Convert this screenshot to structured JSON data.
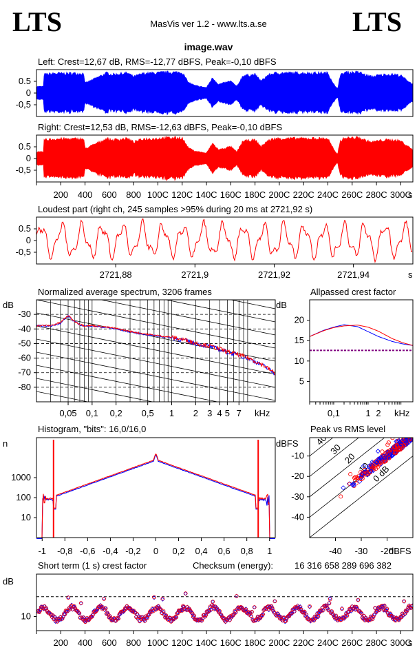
{
  "header": {
    "logo_left": "LTS",
    "logo_right": "LTS",
    "app_title": "MasVis ver 1.2 - www.lts.a.se",
    "file_name": "image.wav"
  },
  "colors": {
    "left": "#0000ff",
    "right": "#ff0000",
    "grid": "#000000"
  },
  "chart_data": [
    {
      "id": "left-waveform",
      "type": "area",
      "title": "Left: Crest=12,67 dB, RMS=-12,77 dBFS, Peak=-0,10 dBFS",
      "ylim": [
        -1,
        1
      ],
      "yticks": [
        "0.5",
        "0",
        "-0,5"
      ],
      "yticks_values": [
        0.5,
        0,
        -0.5
      ],
      "xlim": [
        0,
        3100
      ],
      "envelope": {
        "x": [
          0,
          60,
          62,
          150,
          390,
          400,
          580,
          620,
          750,
          800,
          880,
          1000,
          1050,
          1130,
          1200,
          1250,
          1300,
          1400,
          1450,
          1500,
          1600,
          1650,
          1700,
          1800,
          1850,
          1900,
          1950,
          2000,
          2100,
          2200,
          2300,
          2400,
          2460,
          2480,
          2500,
          2540,
          2600,
          2660,
          2700,
          2760,
          2800,
          2880,
          2950,
          3000,
          3050,
          3100
        ],
        "y": [
          0.3,
          0.3,
          0.85,
          0.9,
          0.9,
          0.45,
          0.92,
          0.85,
          0.92,
          0.75,
          0.9,
          0.92,
          0.95,
          0.95,
          0.95,
          0.5,
          0.35,
          0.25,
          0.7,
          0.4,
          0.55,
          0.3,
          0.8,
          0.85,
          0.55,
          0.8,
          0.9,
          0.92,
          0.92,
          0.92,
          0.92,
          0.92,
          0.3,
          0.2,
          0.8,
          0.95,
          0.95,
          0.95,
          0.85,
          0.75,
          0.8,
          0.85,
          0.85,
          0.8,
          0.6,
          0.4
        ]
      }
    },
    {
      "id": "right-waveform",
      "type": "area",
      "title": "Right: Crest=12,53 dB, RMS=-12,63 dBFS, Peak=-0,10 dBFS",
      "ylim": [
        -1,
        1
      ],
      "yticks": [
        "0.5",
        "0",
        "-0,5"
      ],
      "yticks_values": [
        0.5,
        0,
        -0.5
      ],
      "xlim": [
        0,
        3100
      ],
      "xticks": [
        "200",
        "400",
        "600",
        "800",
        "100C",
        "120C",
        "140C",
        "160C",
        "180C",
        "200C",
        "220C",
        "240C",
        "260C",
        "280C",
        "300C"
      ],
      "xticks_values": [
        200,
        400,
        600,
        800,
        1000,
        1200,
        1400,
        1600,
        1800,
        2000,
        2200,
        2400,
        2600,
        2800,
        3000
      ],
      "xunit": "s",
      "envelope": {
        "x": [
          0,
          60,
          62,
          150,
          390,
          400,
          580,
          620,
          750,
          800,
          880,
          1000,
          1050,
          1130,
          1200,
          1250,
          1300,
          1400,
          1450,
          1500,
          1600,
          1650,
          1700,
          1800,
          1850,
          1900,
          1950,
          2000,
          2100,
          2200,
          2300,
          2400,
          2460,
          2480,
          2500,
          2540,
          2600,
          2660,
          2700,
          2760,
          2800,
          2880,
          2950,
          3000,
          3050,
          3100
        ],
        "y": [
          0.3,
          0.3,
          0.85,
          0.9,
          0.9,
          0.45,
          0.92,
          0.85,
          0.92,
          0.75,
          0.9,
          0.92,
          0.95,
          0.95,
          0.95,
          0.5,
          0.35,
          0.25,
          0.7,
          0.4,
          0.55,
          0.3,
          0.8,
          0.85,
          0.55,
          0.8,
          0.9,
          0.92,
          0.92,
          0.92,
          0.92,
          0.92,
          0.3,
          0.2,
          0.8,
          0.95,
          0.95,
          0.95,
          0.85,
          0.75,
          0.8,
          0.85,
          0.85,
          0.8,
          0.6,
          0.4
        ]
      }
    },
    {
      "id": "loudest-part",
      "type": "line",
      "title": "Loudest part (right ch, 245 samples >95% during 20 ms at 2721,92 s)",
      "ylim": [
        -1,
        1
      ],
      "yticks": [
        "0.5",
        "0",
        "-0,5"
      ],
      "yticks_values": [
        0.5,
        0,
        -0.5
      ],
      "xlim": [
        2721.86,
        2721.955
      ],
      "xticks": [
        "2721,88",
        "2721,9",
        "2721,92",
        "2721,94"
      ],
      "xticks_values": [
        2721.88,
        2721.9,
        2721.92,
        2721.94
      ],
      "xunit": "s",
      "period_s": 0.0051
    },
    {
      "id": "avg-spectrum",
      "type": "line",
      "title": "Normalized average spectrum, 3206 frames",
      "yunit": "dB",
      "ylim": [
        -90,
        -20
      ],
      "yticks": [
        "-30",
        "-40",
        "-50",
        "-60",
        "-70",
        "-80"
      ],
      "yticks_values": [
        -30,
        -40,
        -50,
        -60,
        -70,
        -80
      ],
      "xscale": "log",
      "xlim": [
        0.02,
        20
      ],
      "xticks": [
        "0,05",
        "0,1",
        "0,2",
        "0,5",
        "1",
        "2",
        "3",
        "4",
        "5",
        "7"
      ],
      "xticks_values": [
        0.05,
        0.1,
        0.2,
        0.5,
        1,
        2,
        3,
        4,
        5,
        7
      ],
      "xunit": "kHz",
      "x_khz": [
        0.02,
        0.03,
        0.04,
        0.05,
        0.06,
        0.07,
        0.08,
        0.1,
        0.15,
        0.2,
        0.3,
        0.5,
        0.7,
        1,
        1.5,
        2,
        3,
        4,
        5,
        7,
        10,
        15,
        20
      ],
      "values": [
        -38,
        -38,
        -36,
        -31,
        -35,
        -37,
        -38,
        -38,
        -39,
        -40,
        -42,
        -44,
        -45,
        -46,
        -48,
        -50,
        -52,
        -54,
        -56,
        -58,
        -61,
        -66,
        -71
      ]
    },
    {
      "id": "allpassed-crest",
      "type": "line",
      "title": "Allpassed crest factor",
      "yunit": "dB",
      "ylim": [
        0,
        25
      ],
      "yticks": [
        "20",
        "15",
        "10",
        "5"
      ],
      "yticks_values": [
        20,
        15,
        10,
        5
      ],
      "xscale": "log",
      "xlim": [
        0.02,
        20
      ],
      "xticks": [
        "0,1",
        "1",
        "2"
      ],
      "xticks_values": [
        0.1,
        1,
        2
      ],
      "xunit": "kHz",
      "reference_db": 12.6,
      "series": [
        {
          "color": "#0000ff",
          "x": [
            0.02,
            0.05,
            0.1,
            0.2,
            0.5,
            1,
            2,
            5,
            10,
            20
          ],
          "values": [
            16,
            17.5,
            18.3,
            18.9,
            18.4,
            17.2,
            16,
            14.8,
            14.2,
            13.8
          ]
        },
        {
          "color": "#ff0000",
          "x": [
            0.02,
            0.05,
            0.1,
            0.2,
            0.5,
            1,
            2,
            5,
            10,
            20
          ],
          "values": [
            16,
            17.4,
            18.2,
            18.6,
            18.8,
            18.3,
            17.3,
            15.5,
            14.5,
            13.8
          ]
        }
      ]
    },
    {
      "id": "histogram",
      "type": "bar",
      "title": "Histogram, \"bits\": 16,0/16,0",
      "yunit": "n",
      "yscale": "log",
      "ylim": [
        1,
        100000
      ],
      "yticks": [
        "1000",
        "100",
        "10"
      ],
      "yticks_values": [
        1000,
        100,
        10
      ],
      "xlim": [
        -1.05,
        1.05
      ],
      "xticks": [
        "-1",
        "-0,8",
        "-0,6",
        "-0,4",
        "-0,2",
        "0",
        "0,2",
        "0,4",
        "0,6",
        "0,8",
        "1"
      ],
      "xticks_values": [
        -1,
        -0.8,
        -0.6,
        -0.4,
        -0.2,
        0,
        0.2,
        0.4,
        0.6,
        0.8,
        1
      ]
    },
    {
      "id": "peak-vs-rms",
      "type": "scatter",
      "title": "Peak vs RMS level",
      "yunit": "dBFS",
      "xunit": "dBFS",
      "xlim": [
        -50,
        -10
      ],
      "ylim": [
        -50,
        -1
      ],
      "yticks": [
        "-10",
        "-20",
        "-30",
        "-40"
      ],
      "yticks_values": [
        -10,
        -20,
        -30,
        -40
      ],
      "xticks": [
        "-40",
        "-30",
        "-20"
      ],
      "xticks_values": [
        -40,
        -30,
        -20
      ],
      "crest_lines": [
        "40",
        "30",
        "20",
        "10",
        "0 dB"
      ],
      "crest_values": [
        40,
        30,
        20,
        10,
        0
      ]
    },
    {
      "id": "short-term-crest",
      "type": "scatter",
      "title": "Short term (1 s) crest factor",
      "checksum_label": "Checksum (energy):",
      "checksum_value": "16 316 658 289 696 382",
      "yunit": "dB",
      "ylim": [
        5,
        25
      ],
      "yticks": [
        "10"
      ],
      "yticks_values": [
        10
      ],
      "reference_db": 17,
      "xlim": [
        0,
        3100
      ],
      "xticks": [
        "200",
        "400",
        "600",
        "800",
        "100C",
        "120C",
        "140C",
        "160C",
        "180C",
        "200C",
        "220C",
        "240C",
        "260C",
        "280C",
        "300C"
      ],
      "xticks_values": [
        200,
        400,
        600,
        800,
        1000,
        1200,
        1400,
        1600,
        1800,
        2000,
        2200,
        2400,
        2600,
        2800,
        3000
      ],
      "xunit": "s"
    }
  ]
}
